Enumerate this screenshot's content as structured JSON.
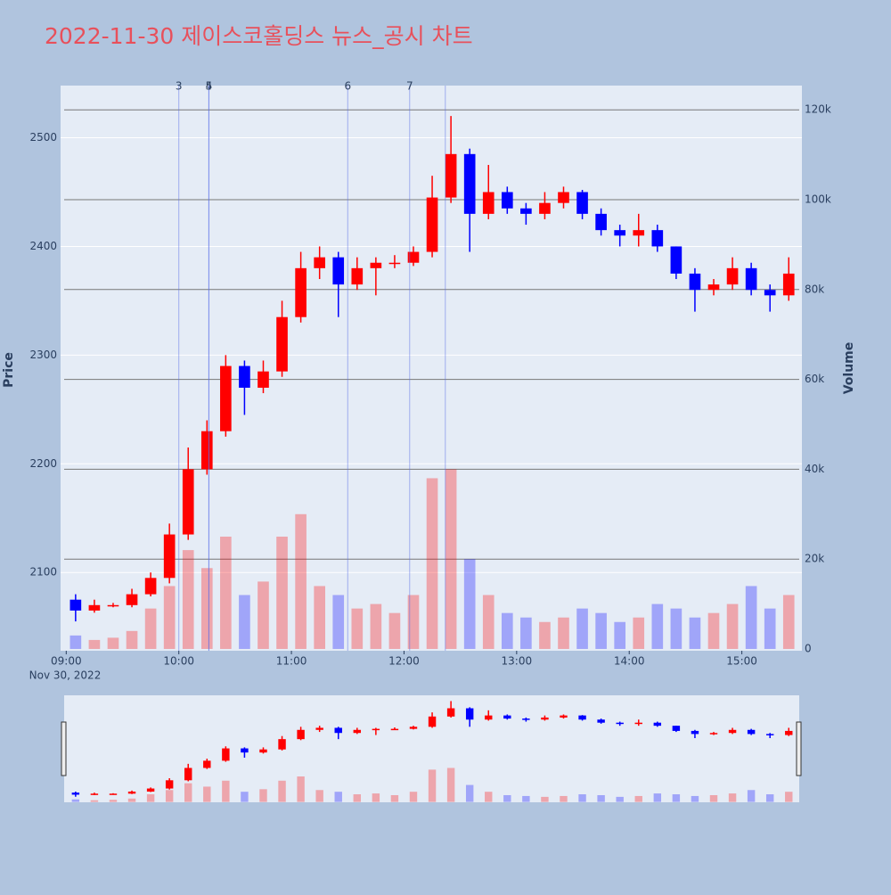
{
  "chart_data": {
    "type": "candlestick",
    "title": "2022-11-30 제이스코홀딩스 뉴스_공시 차트",
    "y_label": "Price",
    "y2_label": "Volume",
    "x_date_label": "Nov 30, 2022",
    "increasing_color": "#ff0000",
    "decreasing_color": "#0000ff",
    "x": [
      "2022-11-30 09:00",
      "2022-11-30 09:10",
      "2022-11-30 09:20",
      "2022-11-30 09:30",
      "2022-11-30 09:40",
      "2022-11-30 09:50",
      "2022-11-30 10:00",
      "2022-11-30 10:10",
      "2022-11-30 10:20",
      "2022-11-30 10:30",
      "2022-11-30 10:40",
      "2022-11-30 10:50",
      "2022-11-30 11:00",
      "2022-11-30 11:10",
      "2022-11-30 11:20",
      "2022-11-30 11:30",
      "2022-11-30 11:40",
      "2022-11-30 11:50",
      "2022-11-30 12:00",
      "2022-11-30 12:10",
      "2022-11-30 12:20",
      "2022-11-30 12:30",
      "2022-11-30 12:40",
      "2022-11-30 12:50",
      "2022-11-30 13:00",
      "2022-11-30 13:10",
      "2022-11-30 13:20",
      "2022-11-30 13:30",
      "2022-11-30 13:40",
      "2022-11-30 13:50",
      "2022-11-30 14:00",
      "2022-11-30 14:10",
      "2022-11-30 14:20",
      "2022-11-30 14:30",
      "2022-11-30 14:40",
      "2022-11-30 14:50",
      "2022-11-30 15:00",
      "2022-11-30 15:10",
      "2022-11-30 15:20"
    ],
    "open": [
      2075,
      2065,
      2070,
      2070,
      2080,
      2095,
      2135,
      2195,
      2230,
      2290,
      2270,
      2285,
      2335,
      2380,
      2390,
      2365,
      2380,
      2385,
      2385,
      2395,
      2445,
      2485,
      2430,
      2450,
      2435,
      2430,
      2440,
      2450,
      2430,
      2415,
      2410,
      2415,
      2400,
      2375,
      2360,
      2365,
      2380,
      2360,
      2355
    ],
    "high": [
      2080,
      2075,
      2072,
      2085,
      2100,
      2145,
      2215,
      2240,
      2300,
      2295,
      2295,
      2350,
      2395,
      2400,
      2395,
      2390,
      2390,
      2392,
      2400,
      2465,
      2520,
      2490,
      2475,
      2455,
      2440,
      2450,
      2455,
      2452,
      2435,
      2420,
      2430,
      2420,
      2400,
      2380,
      2370,
      2390,
      2385,
      2365,
      2390
    ],
    "low": [
      2055,
      2063,
      2068,
      2068,
      2078,
      2090,
      2130,
      2190,
      2225,
      2245,
      2265,
      2280,
      2330,
      2370,
      2335,
      2360,
      2355,
      2380,
      2382,
      2390,
      2440,
      2395,
      2425,
      2430,
      2420,
      2425,
      2435,
      2425,
      2410,
      2400,
      2400,
      2395,
      2370,
      2340,
      2355,
      2360,
      2355,
      2340,
      2350
    ],
    "close": [
      2065,
      2070,
      2070,
      2080,
      2095,
      2135,
      2195,
      2230,
      2290,
      2270,
      2285,
      2335,
      2380,
      2390,
      2365,
      2380,
      2385,
      2385,
      2395,
      2445,
      2485,
      2430,
      2450,
      2435,
      2430,
      2440,
      2450,
      2430,
      2415,
      2410,
      2415,
      2400,
      2375,
      2360,
      2365,
      2380,
      2360,
      2355,
      2375
    ],
    "volume": [
      3000,
      2000,
      2500,
      4000,
      9000,
      14000,
      22000,
      18000,
      25000,
      12000,
      15000,
      25000,
      30000,
      14000,
      12000,
      9000,
      10000,
      8000,
      12000,
      38000,
      40000,
      20000,
      12000,
      8000,
      7000,
      6000,
      7000,
      9000,
      8000,
      6000,
      7000,
      10000,
      9000,
      7000,
      8000,
      10000,
      14000,
      9000,
      12000
    ],
    "annotations": [
      {
        "x": "2022-11-30 10:00",
        "label": "3"
      },
      {
        "x": "2022-11-30 10:16",
        "label": "4"
      },
      {
        "x": "2022-11-30 10:16",
        "label": "5"
      },
      {
        "x": "2022-11-30 11:30",
        "label": "6"
      },
      {
        "x": "2022-11-30 12:03",
        "label": "7"
      },
      {
        "x": "2022-11-30 12:22",
        "label": null
      }
    ],
    "xlim": [
      "2022-11-30 08:57",
      "2022-11-30 15:32"
    ],
    "xticks": [
      {
        "value": "2022-11-30 09:00",
        "label": "09:00"
      },
      {
        "value": "2022-11-30 10:00",
        "label": "10:00"
      },
      {
        "value": "2022-11-30 11:00",
        "label": "11:00"
      },
      {
        "value": "2022-11-30 12:00",
        "label": "12:00"
      },
      {
        "value": "2022-11-30 13:00",
        "label": "13:00"
      },
      {
        "value": "2022-11-30 14:00",
        "label": "14:00"
      },
      {
        "value": "2022-11-30 15:00",
        "label": "15:00"
      }
    ],
    "ylim": [
      2028,
      2548
    ],
    "yticks": [
      2100,
      2200,
      2300,
      2400,
      2500
    ],
    "y2lim": [
      -400,
      125400
    ],
    "y2ticks": [
      0,
      {
        "value": 20000,
        "label": "20k"
      },
      {
        "value": 40000,
        "label": "40k"
      },
      {
        "value": 60000,
        "label": "60k"
      },
      {
        "value": 80000,
        "label": "80k"
      },
      {
        "value": 100000,
        "label": "100k"
      },
      {
        "value": 120000,
        "label": "120k"
      }
    ],
    "grid": true,
    "rangeslider": true
  }
}
